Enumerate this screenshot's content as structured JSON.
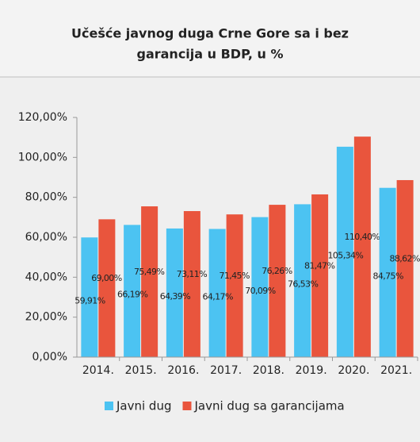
{
  "chart_data": {
    "type": "bar",
    "title": [
      "Učešće javnog duga Crne Gore sa i bez",
      "garancija u BDP, u %"
    ],
    "categories": [
      "2014.",
      "2015.",
      "2016.",
      "2017.",
      "2018.",
      "2019.",
      "2020.",
      "2021."
    ],
    "series": [
      {
        "name": "Javni dug",
        "color": "#4cc3f2",
        "values": [
          59.91,
          66.19,
          64.39,
          64.17,
          70.09,
          76.53,
          105.34,
          84.75
        ],
        "value_labels": [
          "59,91%",
          "66,19%",
          "64,39%",
          "64,17%",
          "70,09%",
          "76,53%",
          "105,34%",
          "84,75%"
        ]
      },
      {
        "name": "Javni dug sa garancijama",
        "color": "#e9553d",
        "values": [
          69.0,
          75.49,
          73.11,
          71.45,
          76.26,
          81.47,
          110.4,
          88.62
        ],
        "value_labels": [
          "69,00%",
          "75,49%",
          "73,11%",
          "71,45%",
          "76,26%",
          "81,47%",
          "110,40%",
          "88,62%"
        ]
      }
    ],
    "ylim": [
      0,
      120
    ],
    "yticks": [
      {
        "value": 0,
        "label": "0,00%"
      },
      {
        "value": 20,
        "label": "20,00%"
      },
      {
        "value": 40,
        "label": "40,00%"
      },
      {
        "value": 60,
        "label": "60,00%"
      },
      {
        "value": 80,
        "label": "80,00%"
      },
      {
        "value": 100,
        "label": "100,00%"
      },
      {
        "value": 120,
        "label": "120,00%"
      }
    ],
    "legend": "bottom"
  }
}
